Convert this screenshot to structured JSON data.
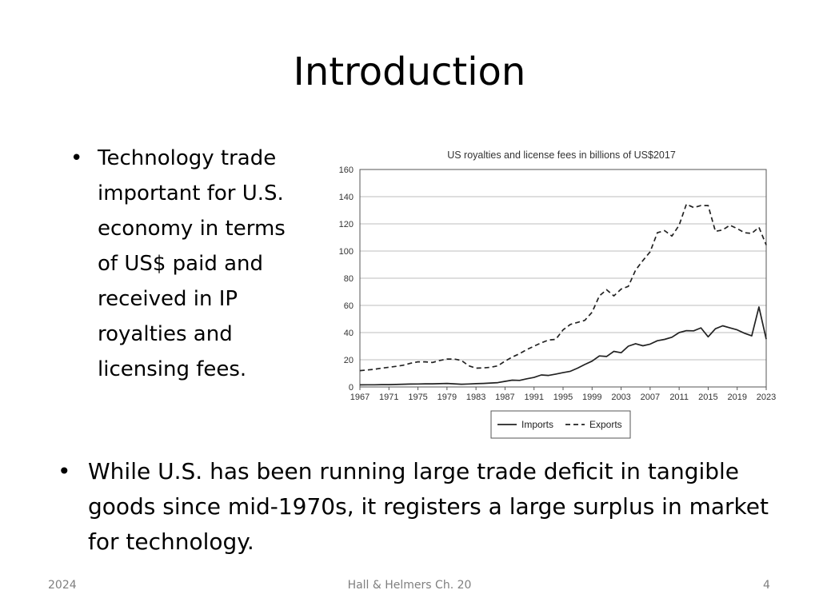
{
  "slide": {
    "title": "Introduction",
    "bullet1": "Technology trade important for U.S. economy in terms of US$ paid and received in IP royalties and licensing fees.",
    "bullet2": "While U.S. has been running large trade deficit in tangible goods since mid-1970s, it registers a large surplus in market for technology.",
    "bullet_char": "•"
  },
  "footer": {
    "left": "2024",
    "center": "Hall & Helmers Ch. 20",
    "right": "4"
  },
  "chart_data": {
    "type": "line",
    "title": "US royalties and license fees in billions of US$2017",
    "xlabel": "",
    "ylabel": "",
    "xlim": [
      1967,
      2023
    ],
    "ylim": [
      0,
      160
    ],
    "yticks": [
      0,
      20,
      40,
      60,
      80,
      100,
      120,
      140,
      160
    ],
    "xticks": [
      1967,
      1971,
      1975,
      1979,
      1983,
      1987,
      1991,
      1995,
      1999,
      2003,
      2007,
      2011,
      2015,
      2019,
      2023
    ],
    "grid": true,
    "legend": "bottom",
    "x": [
      1967,
      1968,
      1969,
      1970,
      1971,
      1972,
      1973,
      1974,
      1975,
      1976,
      1977,
      1978,
      1979,
      1980,
      1981,
      1982,
      1983,
      1984,
      1985,
      1986,
      1987,
      1988,
      1989,
      1990,
      1991,
      1992,
      1993,
      1994,
      1995,
      1996,
      1997,
      1998,
      1999,
      2000,
      2001,
      2002,
      2003,
      2004,
      2005,
      2006,
      2007,
      2008,
      2009,
      2010,
      2011,
      2012,
      2013,
      2014,
      2015,
      2016,
      2017,
      2018,
      2019,
      2020,
      2021,
      2022,
      2023
    ],
    "series": [
      {
        "name": "Imports",
        "style": "solid",
        "values": [
          1.5,
          1.6,
          1.6,
          1.7,
          1.7,
          1.8,
          2.0,
          2.1,
          2.2,
          2.3,
          2.3,
          2.4,
          2.6,
          2.3,
          2.0,
          2.2,
          2.4,
          2.6,
          2.9,
          3.2,
          4.1,
          5.0,
          4.8,
          6.0,
          7.0,
          8.8,
          8.5,
          9.5,
          10.5,
          11.5,
          13.8,
          16.5,
          19.0,
          22.8,
          22.4,
          26.2,
          25.2,
          30.0,
          31.8,
          30.3,
          31.5,
          34.0,
          35.0,
          36.6,
          40.0,
          41.4,
          41.3,
          43.5,
          36.9,
          42.8,
          45.0,
          43.5,
          42.0,
          39.5,
          37.6,
          58.8,
          35.2
        ]
      },
      {
        "name": "Exports",
        "style": "dashed",
        "values": [
          12.0,
          12.5,
          13.0,
          13.8,
          14.5,
          15.2,
          16.0,
          17.5,
          18.5,
          18.5,
          18.0,
          19.5,
          20.5,
          20.5,
          19.5,
          15.5,
          13.8,
          14.0,
          14.5,
          15.5,
          19.0,
          22.0,
          24.5,
          27.5,
          30.0,
          32.5,
          34.5,
          35.0,
          42.0,
          46.0,
          47.5,
          49.0,
          55.0,
          67.0,
          71.5,
          67.0,
          72.0,
          74.0,
          86.0,
          93.0,
          99.5,
          113.5,
          115.0,
          111.0,
          119.0,
          134.5,
          132.0,
          133.5,
          133.5,
          114.5,
          115.5,
          119.0,
          116.5,
          113.5,
          113.0,
          117.5,
          104.5
        ]
      }
    ]
  }
}
